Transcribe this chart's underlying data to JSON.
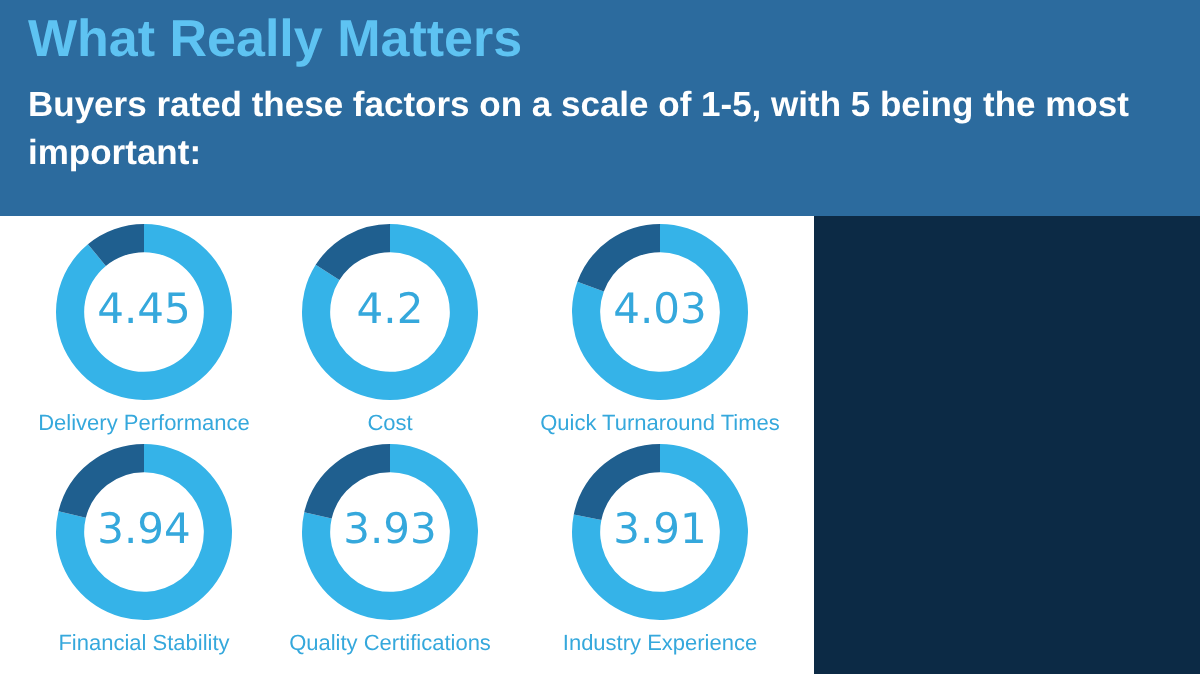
{
  "chart_data": [
    {
      "type": "other",
      "title": "What Really Matters",
      "subtitle": "Buyers rated these factors on a scale of 1-5, with 5 being the most important:"
    },
    {
      "type": "donut",
      "title": "Delivery Performance",
      "categories": [
        null,
        null
      ],
      "values": [
        4.45,
        0.55
      ],
      "colors": [
        "#35b3e8",
        "#1f5f8f"
      ],
      "value_labels": [
        "4.45",
        null
      ]
    },
    {
      "type": "donut",
      "title": "Cost",
      "categories": [
        null,
        null
      ],
      "values": [
        4.2,
        0.8
      ],
      "colors": [
        "#35b3e8",
        "#1f5f8f"
      ],
      "value_labels": [
        "4.2",
        null
      ]
    },
    {
      "type": "donut",
      "title": "Quick Turnaround Times",
      "categories": [
        null,
        null
      ],
      "values": [
        4.03,
        0.97
      ],
      "colors": [
        "#35b3e8",
        "#1f5f8f"
      ],
      "value_labels": [
        "4.03",
        null
      ]
    },
    {
      "type": "donut",
      "title": "Financial Stability",
      "categories": [
        null,
        null
      ],
      "values": [
        3.94,
        1.06
      ],
      "colors": [
        "#35b3e8",
        "#1f5f8f"
      ],
      "value_labels": [
        "3.94",
        null
      ]
    },
    {
      "type": "donut",
      "title": "Quality Certifications",
      "categories": [
        null,
        null
      ],
      "values": [
        3.93,
        1.07
      ],
      "colors": [
        "#35b3e8",
        "#1f5f8f"
      ],
      "value_labels": [
        "3.93",
        null
      ]
    },
    {
      "type": "donut",
      "title": "Industry Experience",
      "categories": [
        null,
        null
      ],
      "values": [
        3.91,
        1.09
      ],
      "colors": [
        "#35b3e8",
        "#1f5f8f"
      ],
      "value_labels": [
        "3.91",
        null
      ]
    }
  ]
}
